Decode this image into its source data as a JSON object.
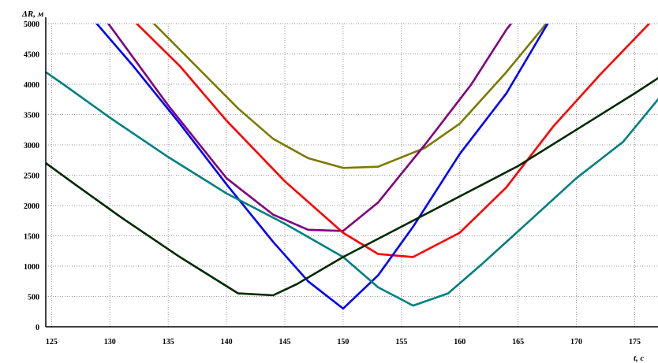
{
  "chart_data": {
    "type": "line",
    "title": "",
    "xlabel": "t, c",
    "ylabel": "ΔR, м",
    "xlim": [
      124.5,
      177
    ],
    "ylim": [
      0,
      5000
    ],
    "x_ticks": [
      125,
      130,
      135,
      140,
      145,
      150,
      155,
      160,
      165,
      170,
      175
    ],
    "y_ticks": [
      0,
      500,
      1000,
      1500,
      2000,
      2500,
      3000,
      3500,
      4000,
      4500,
      5000
    ],
    "x_tick_labels": [
      "125",
      "130",
      "135",
      "140",
      "145",
      "150",
      "155",
      "160",
      "165",
      "170",
      "175"
    ],
    "y_tick_labels": [
      "0",
      "500",
      "1000",
      "1500",
      "2000",
      "2500",
      "3000",
      "3500",
      "4000",
      "4500",
      "5000"
    ],
    "grid": true,
    "legend": "none",
    "series": [
      {
        "color": "#7a7a00",
        "points": [
          [
            133,
            5150
          ],
          [
            141,
            3600
          ],
          [
            144,
            3100
          ],
          [
            147,
            2780
          ],
          [
            150,
            2620
          ],
          [
            153,
            2640
          ],
          [
            157,
            2950
          ],
          [
            160,
            3350
          ],
          [
            164,
            4200
          ],
          [
            167,
            4900
          ],
          [
            168,
            5150
          ]
        ]
      },
      {
        "color": "#800080",
        "points": [
          [
            129.3,
            5150
          ],
          [
            135,
            3650
          ],
          [
            140,
            2450
          ],
          [
            144,
            1850
          ],
          [
            147,
            1600
          ],
          [
            150,
            1580
          ],
          [
            153,
            2050
          ],
          [
            157,
            3000
          ],
          [
            161,
            4000
          ],
          [
            164,
            4900
          ],
          [
            165,
            5150
          ]
        ]
      },
      {
        "color": "#ff0000",
        "points": [
          [
            131.5,
            5150
          ],
          [
            136,
            4300
          ],
          [
            140,
            3400
          ],
          [
            145,
            2400
          ],
          [
            150,
            1550
          ],
          [
            153,
            1200
          ],
          [
            156,
            1150
          ],
          [
            160,
            1550
          ],
          [
            164,
            2300
          ],
          [
            168,
            3300
          ],
          [
            172,
            4150
          ],
          [
            177,
            5150
          ]
        ]
      },
      {
        "color": "#0000ff",
        "points": [
          [
            128.2,
            5150
          ],
          [
            132,
            4300
          ],
          [
            136,
            3350
          ],
          [
            140,
            2350
          ],
          [
            144,
            1400
          ],
          [
            147,
            750
          ],
          [
            150,
            300
          ],
          [
            153,
            850
          ],
          [
            156,
            1650
          ],
          [
            160,
            2850
          ],
          [
            164,
            3850
          ],
          [
            166,
            4500
          ],
          [
            168,
            5150
          ]
        ]
      },
      {
        "color": "#008080",
        "points": [
          [
            124.5,
            4200
          ],
          [
            126,
            4000
          ],
          [
            130,
            3450
          ],
          [
            135,
            2800
          ],
          [
            140,
            2200
          ],
          [
            145,
            1700
          ],
          [
            150,
            1150
          ],
          [
            153,
            650
          ],
          [
            156,
            350
          ],
          [
            159,
            550
          ],
          [
            162,
            1050
          ],
          [
            166,
            1750
          ],
          [
            170,
            2450
          ],
          [
            174,
            3050
          ],
          [
            177,
            3750
          ]
        ]
      },
      {
        "color": "#002a00",
        "points": [
          [
            124.5,
            2700
          ],
          [
            127,
            2350
          ],
          [
            131,
            1800
          ],
          [
            136,
            1150
          ],
          [
            141,
            550
          ],
          [
            144,
            520
          ],
          [
            146,
            700
          ],
          [
            150,
            1150
          ],
          [
            155,
            1650
          ],
          [
            160,
            2150
          ],
          [
            165,
            2650
          ],
          [
            170,
            3250
          ],
          [
            175,
            3850
          ],
          [
            177,
            4100
          ]
        ]
      }
    ]
  }
}
